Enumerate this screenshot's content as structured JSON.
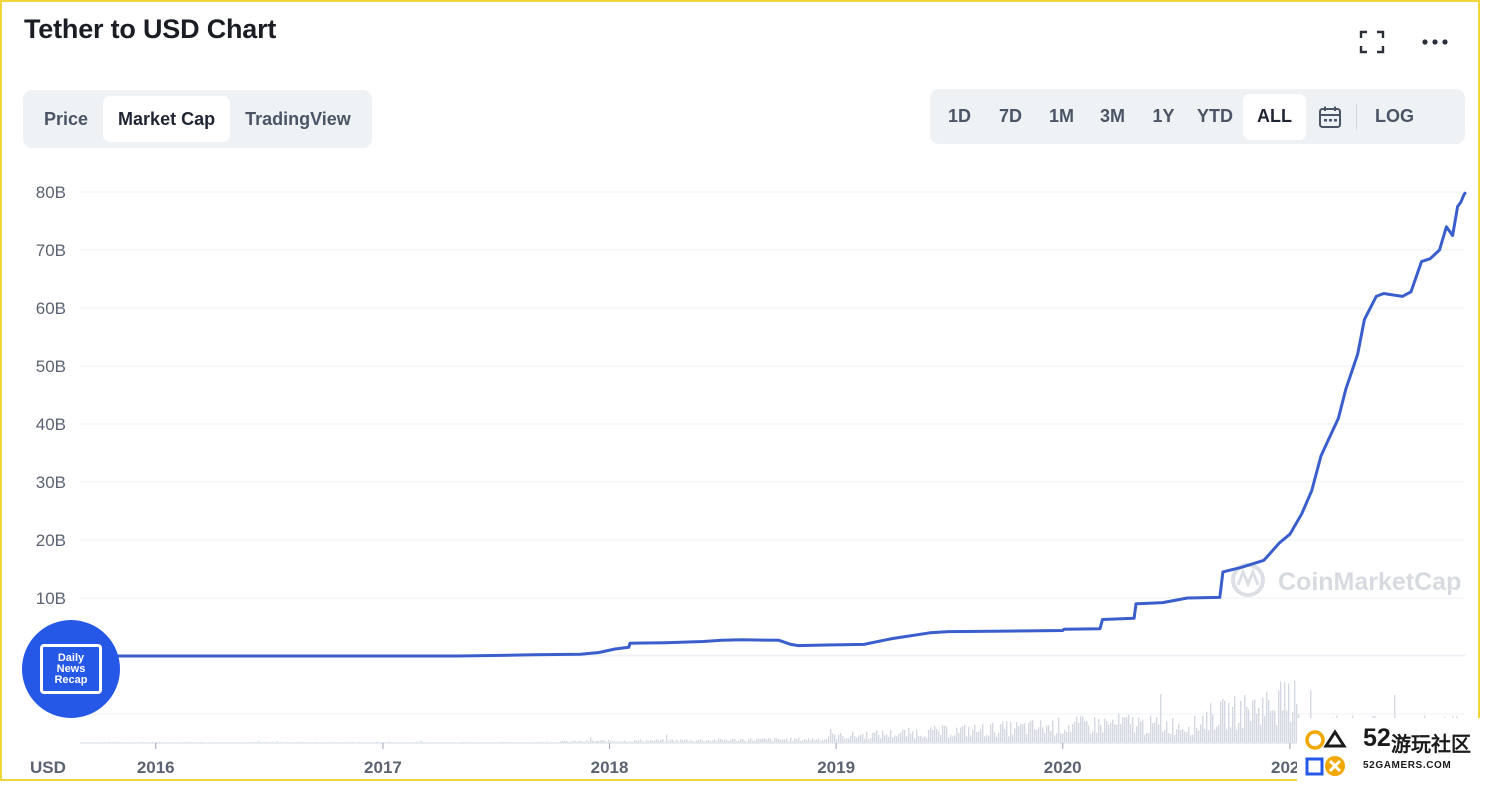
{
  "header": {
    "title": "Tether to USD Chart"
  },
  "tabs": [
    {
      "label": "Price",
      "active": false
    },
    {
      "label": "Market Cap",
      "active": true
    },
    {
      "label": "TradingView",
      "active": false
    }
  ],
  "ranges": [
    {
      "label": "1D",
      "active": false
    },
    {
      "label": "7D",
      "active": false
    },
    {
      "label": "1M",
      "active": false
    },
    {
      "label": "3M",
      "active": false
    },
    {
      "label": "1Y",
      "active": false
    },
    {
      "label": "YTD",
      "active": false
    },
    {
      "label": "ALL",
      "active": true
    }
  ],
  "log_label": "LOG",
  "icons": {
    "expand": "expand-icon",
    "more": "more-horizontal-icon",
    "calendar": "calendar-icon"
  },
  "watermark": {
    "text": "CoinMarketCap"
  },
  "badge": {
    "lines": [
      "Daily",
      "News",
      "Recap"
    ]
  },
  "overlay_52": {
    "number": "52",
    "name": "游玩社区",
    "site": "52GAMERS.COM"
  },
  "colors": {
    "line": "#3a5fcd",
    "grid": "#eef1f5",
    "volume": "#d3d8e2",
    "accent_badge": "#2558e6",
    "frame": "#f2d43c"
  },
  "chart_data": {
    "type": "line",
    "title": "Tether to USD Chart",
    "currency_label": "USD",
    "x_ticks": [
      "2016",
      "2017",
      "2018",
      "2019",
      "2020",
      "2021"
    ],
    "y_ticks": [
      "10B",
      "20B",
      "30B",
      "40B",
      "50B",
      "60B",
      "70B",
      "80B"
    ],
    "ylim": [
      -15,
      80
    ],
    "xlim": [
      "2015-09-01",
      "2021-10-10"
    ],
    "grid": true,
    "series": [
      {
        "values_unit": "B",
        "points": [
          [
            "2015-09-01",
            0.0
          ],
          [
            "2016-06-01",
            0.0
          ],
          [
            "2017-01-01",
            0.0
          ],
          [
            "2017-05-01",
            0.0
          ],
          [
            "2017-09-01",
            0.2
          ],
          [
            "2017-11-15",
            0.3
          ],
          [
            "2017-12-15",
            0.6
          ],
          [
            "2018-01-10",
            1.2
          ],
          [
            "2018-02-01",
            1.5
          ],
          [
            "2018-02-03",
            2.2
          ],
          [
            "2018-04-01",
            2.3
          ],
          [
            "2018-06-01",
            2.5
          ],
          [
            "2018-07-01",
            2.7
          ],
          [
            "2018-08-01",
            2.8
          ],
          [
            "2018-10-01",
            2.7
          ],
          [
            "2018-10-20",
            2.0
          ],
          [
            "2018-11-01",
            1.8
          ],
          [
            "2018-12-15",
            1.9
          ],
          [
            "2019-02-15",
            2.0
          ],
          [
            "2019-04-01",
            3.0
          ],
          [
            "2019-06-01",
            4.0
          ],
          [
            "2019-07-01",
            4.2
          ],
          [
            "2019-10-01",
            4.3
          ],
          [
            "2020-01-01",
            4.4
          ],
          [
            "2020-01-03",
            4.6
          ],
          [
            "2020-03-01",
            4.7
          ],
          [
            "2020-03-05",
            6.3
          ],
          [
            "2020-04-25",
            6.5
          ],
          [
            "2020-04-28",
            9.0
          ],
          [
            "2020-06-10",
            9.2
          ],
          [
            "2020-07-20",
            10.0
          ],
          [
            "2020-09-10",
            10.1
          ],
          [
            "2020-09-15",
            14.5
          ],
          [
            "2020-10-15",
            15.3
          ],
          [
            "2020-11-20",
            16.5
          ],
          [
            "2020-12-15",
            19.5
          ],
          [
            "2021-01-01",
            21.0
          ],
          [
            "2021-01-20",
            24.5
          ],
          [
            "2021-02-05",
            28.5
          ],
          [
            "2021-02-20",
            34.5
          ],
          [
            "2021-03-05",
            37.5
          ],
          [
            "2021-03-20",
            41.0
          ],
          [
            "2021-04-01",
            46.0
          ],
          [
            "2021-04-20",
            52.0
          ],
          [
            "2021-05-01",
            58.0
          ],
          [
            "2021-05-20",
            62.0
          ],
          [
            "2021-06-01",
            62.5
          ],
          [
            "2021-07-01",
            62.0
          ],
          [
            "2021-07-15",
            62.8
          ],
          [
            "2021-08-01",
            68.0
          ],
          [
            "2021-08-15",
            68.5
          ],
          [
            "2021-08-30",
            70.0
          ],
          [
            "2021-09-10",
            74.0
          ],
          [
            "2021-09-20",
            72.5
          ],
          [
            "2021-09-28",
            77.5
          ],
          [
            "2021-10-03",
            78.2
          ],
          [
            "2021-10-08",
            79.5
          ],
          [
            "2021-10-10",
            79.8
          ]
        ]
      }
    ]
  }
}
